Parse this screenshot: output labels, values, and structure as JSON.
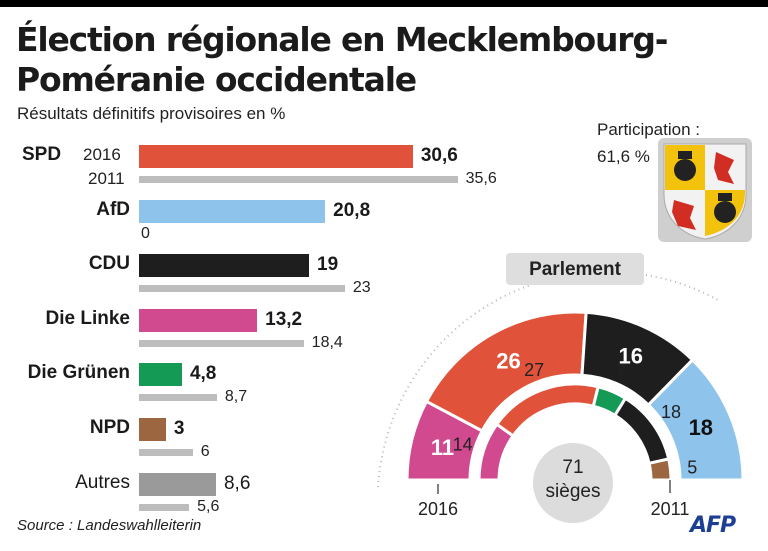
{
  "title_line1": "Élection régionale en Mecklembourg-",
  "title_line2": "Poméranie occidentale",
  "subtitle": "Résultats définitifs provisoires en %",
  "participation_label": "Participation :",
  "participation_value": "61,6 %",
  "source": "Source : Landeswahlleiterin",
  "agency": "AFP",
  "year_2016_label": "2016",
  "year_2011_label": "2011",
  "colors": {
    "SPD": "#e0533a",
    "AfD": "#8ec4ec",
    "CDU": "#1e1e1e",
    "Die Linke": "#d14a8f",
    "Die Grünen": "#159a55",
    "NPD": "#9c6740",
    "Autres": "#9a9a9a",
    "previous": "#bdbdbd",
    "shield_gray": "#bcbcbc"
  },
  "chart_data": [
    {
      "type": "bar",
      "title": "Résultats définitifs provisoires en %",
      "categories": [
        "SPD",
        "AfD",
        "CDU",
        "Die Linke",
        "Die Grünen",
        "NPD",
        "Autres"
      ],
      "series": [
        {
          "name": "2016",
          "values": [
            30.6,
            20.8,
            19,
            13.2,
            4.8,
            3,
            8.6
          ],
          "labels": [
            "30,6",
            "20,8",
            "19",
            "13,2",
            "4,8",
            "3",
            "8,6"
          ]
        },
        {
          "name": "2011",
          "values": [
            35.6,
            0,
            23,
            18.4,
            8.7,
            6,
            5.6
          ],
          "labels": [
            "35,6",
            "0",
            "23",
            "18,4",
            "8,7",
            "6",
            "5,6"
          ]
        }
      ]
    },
    {
      "type": "pie",
      "title": "Parlement",
      "total_label": "71",
      "total_unit": "sièges",
      "series": [
        {
          "name": "2016",
          "parties": [
            "Die Linke",
            "SPD",
            "CDU",
            "AfD"
          ],
          "values": [
            11,
            26,
            16,
            18
          ]
        },
        {
          "name": "2011",
          "parties": [
            "Die Linke",
            "SPD",
            "Die Grünen",
            "CDU",
            "NPD"
          ],
          "values": [
            14,
            27,
            7,
            18,
            5
          ]
        }
      ]
    }
  ]
}
